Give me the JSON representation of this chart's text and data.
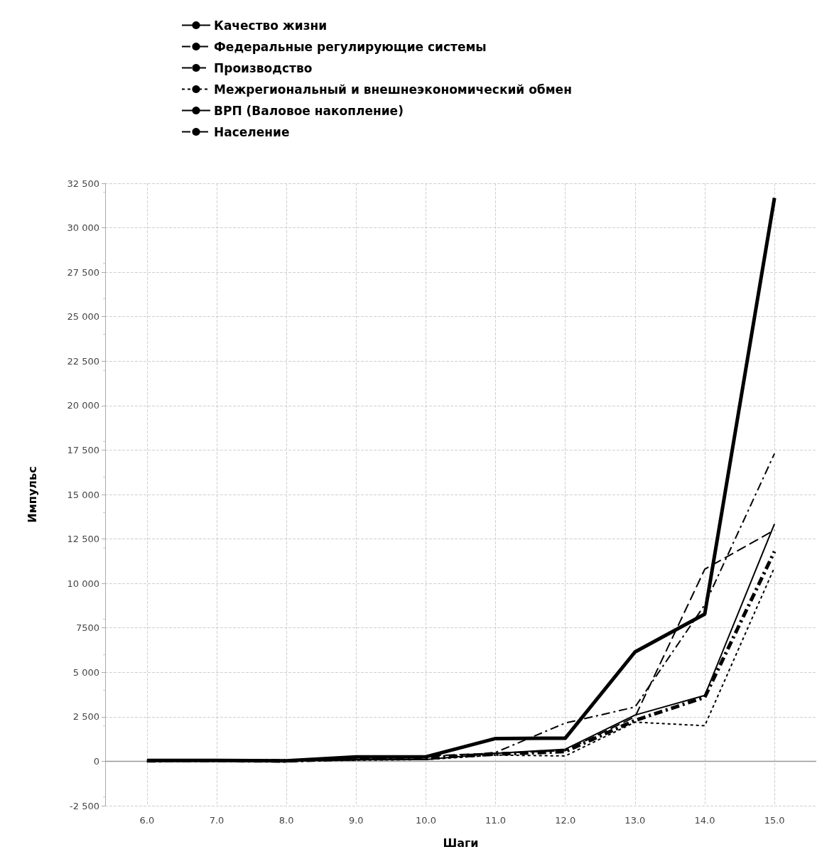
{
  "chart_data": {
    "type": "line",
    "xlabel": "Шаги",
    "ylabel": "Импульс",
    "x": [
      6,
      7,
      8,
      9,
      10,
      11,
      12,
      13,
      14,
      15
    ],
    "series": [
      {
        "name": "Качество жизни",
        "color": "#000000",
        "line_style": "solid",
        "values": [
          0,
          30,
          20,
          100,
          100,
          450,
          680,
          2600,
          3700,
          13350
        ]
      },
      {
        "name": "Федеральные регулирующие системы",
        "color": "#000000",
        "line_style": "dashdot",
        "values": [
          0,
          20,
          10,
          80,
          100,
          500,
          2150,
          3050,
          8800,
          17300
        ]
      },
      {
        "name": "Производство",
        "color": "#000000",
        "line_style": "dashed",
        "values": [
          0,
          20,
          10,
          80,
          300,
          450,
          600,
          2500,
          10800,
          13000
        ]
      },
      {
        "name": "Межрегиональный и внешнеэкономический обмен",
        "color": "#000000",
        "line_style": "dotted",
        "values": [
          0,
          20,
          10,
          60,
          100,
          350,
          300,
          2200,
          2000,
          10900
        ]
      },
      {
        "name": "ВРП (Валовое накопление)",
        "color": "#000000",
        "line_style": "solid",
        "values": [
          50,
          50,
          30,
          250,
          250,
          1280,
          1300,
          6150,
          8280,
          31680
        ]
      },
      {
        "name": "Население",
        "color": "#000000",
        "line_style": "dashdot",
        "values": [
          30,
          40,
          20,
          150,
          200,
          400,
          550,
          2300,
          3600,
          11800
        ]
      }
    ],
    "xlim": [
      5.4,
      15.6
    ],
    "xticks": [
      {
        "value": 6,
        "label": "6.0"
      },
      {
        "value": 7,
        "label": "7.0"
      },
      {
        "value": 8,
        "label": "8.0"
      },
      {
        "value": 9,
        "label": "9.0"
      },
      {
        "value": 10,
        "label": "10.0"
      },
      {
        "value": 11,
        "label": "11.0"
      },
      {
        "value": 12,
        "label": "12.0"
      },
      {
        "value": 13,
        "label": "13.0"
      },
      {
        "value": 14,
        "label": "14.0"
      },
      {
        "value": 15,
        "label": "15.0"
      }
    ],
    "ylim": [
      -2500,
      32500
    ],
    "yticks": [
      {
        "value": -2500,
        "label": "-2 500"
      },
      0,
      {
        "value": 2500,
        "label": "2 500"
      },
      {
        "value": 5000,
        "label": "5 000"
      },
      {
        "value": 7500,
        "label": "7500"
      },
      {
        "value": 10000,
        "label": "10 000"
      },
      {
        "value": 12500,
        "label": "12 500"
      },
      {
        "value": 15000,
        "label": "15 000"
      },
      {
        "value": 17500,
        "label": "17 500"
      },
      {
        "value": 20000,
        "label": "20 000"
      },
      {
        "value": 22500,
        "label": "22 500"
      },
      {
        "value": 25000,
        "label": "25 000"
      },
      {
        "value": 27500,
        "label": "27 500"
      },
      {
        "value": 30000,
        "label": "30 000"
      },
      {
        "value": 32500,
        "label": "32 500"
      }
    ],
    "grid": true,
    "legend": "top",
    "marker": "none"
  }
}
